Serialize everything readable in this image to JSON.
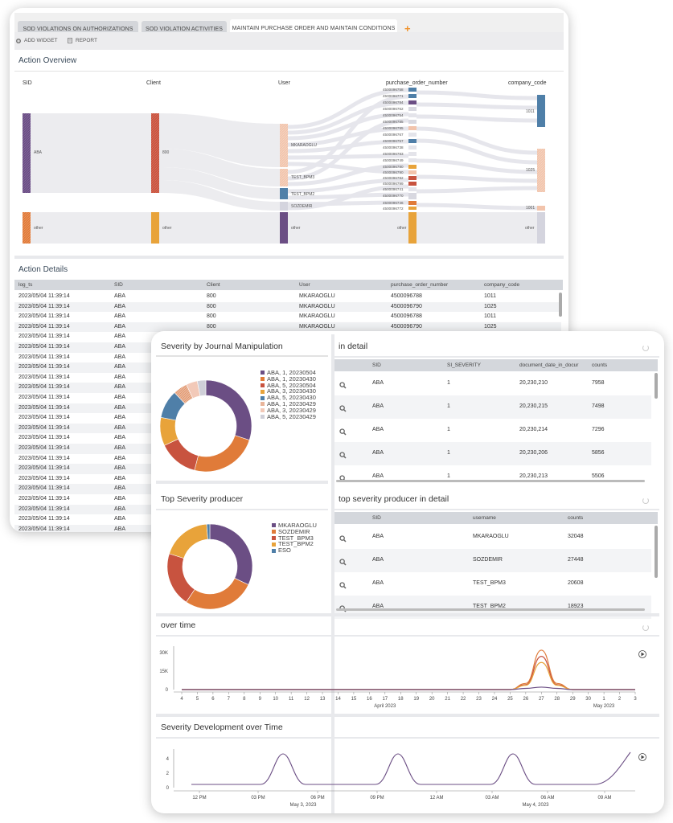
{
  "tabs": [
    {
      "label": "SOD VIOLATIONS ON AUTHORIZATIONS"
    },
    {
      "label": "SOD VIOLATION ACTIVITIES"
    },
    {
      "label": "MAINTAIN PURCHASE ORDER AND MAINTAIN CONDITIONS"
    }
  ],
  "tab_add": "+",
  "toolbar": {
    "add_widget": "ADD WIDGET",
    "report": "REPORT"
  },
  "action_overview": {
    "title": "Action Overview",
    "columns": [
      "SID",
      "Client",
      "User",
      "purchase_order_number",
      "company_code"
    ],
    "sid_nodes": [
      "ABA",
      "other"
    ],
    "client_nodes": [
      "800",
      "other"
    ],
    "user_nodes": [
      "MKARAOGLU",
      "TEST_BPM3",
      "TEST_BPM2",
      "SOZDEMIR",
      "other"
    ],
    "po_numbers": [
      "4500096758",
      "4500096771",
      "4500096784",
      "4500096762",
      "4500096754",
      "4500096785",
      "4500096795",
      "4500096767",
      "4500096757",
      "4500096738",
      "4500096783",
      "4500096749",
      "4500096780",
      "4500096790",
      "4500096782",
      "4500096799",
      "4500096741",
      "4500096770",
      "4500096746",
      "4500096772"
    ],
    "po_other": "other",
    "company_nodes": [
      "1011",
      "1025",
      "1001",
      "other"
    ]
  },
  "action_details": {
    "title": "Action Details",
    "headers": [
      "log_ts",
      "SID",
      "Client",
      "User",
      "purchase_order_number",
      "company_code"
    ],
    "rows": [
      [
        "2023/05/04 11:39:14",
        "ABA",
        "800",
        "MKARAOGLU",
        "4500096788",
        "1011"
      ],
      [
        "2023/05/04 11:39:14",
        "ABA",
        "800",
        "MKARAOGLU",
        "4500096790",
        "1025"
      ],
      [
        "2023/05/04 11:39:14",
        "ABA",
        "800",
        "MKARAOGLU",
        "4500096788",
        "1011"
      ],
      [
        "2023/05/04 11:39:14",
        "ABA",
        "800",
        "MKARAOGLU",
        "4500096790",
        "1025"
      ],
      [
        "2023/05/04 11:39:14",
        "ABA",
        "",
        "",
        "",
        ""
      ],
      [
        "2023/05/04 11:39:14",
        "ABA",
        "",
        "",
        "",
        ""
      ],
      [
        "2023/05/04 11:39:14",
        "ABA",
        "",
        "",
        "",
        ""
      ],
      [
        "2023/05/04 11:39:14",
        "ABA",
        "",
        "",
        "",
        ""
      ],
      [
        "2023/05/04 11:39:14",
        "ABA",
        "",
        "",
        "",
        ""
      ],
      [
        "2023/05/04 11:39:14",
        "ABA",
        "",
        "",
        "",
        ""
      ],
      [
        "2023/05/04 11:39:14",
        "ABA",
        "",
        "",
        "",
        ""
      ],
      [
        "2023/05/04 11:39:14",
        "ABA",
        "",
        "",
        "",
        ""
      ],
      [
        "2023/05/04 11:39:14",
        "ABA",
        "",
        "",
        "",
        ""
      ],
      [
        "2023/05/04 11:39:14",
        "ABA",
        "",
        "",
        "",
        ""
      ],
      [
        "2023/05/04 11:39:14",
        "ABA",
        "",
        "",
        "",
        ""
      ],
      [
        "2023/05/04 11:39:14",
        "ABA",
        "",
        "",
        "",
        ""
      ],
      [
        "2023/05/04 11:39:14",
        "ABA",
        "",
        "",
        "",
        ""
      ],
      [
        "2023/05/04 11:39:14",
        "ABA",
        "",
        "",
        "",
        ""
      ],
      [
        "2023/05/04 11:39:14",
        "ABA",
        "",
        "",
        "",
        ""
      ],
      [
        "2023/05/04 11:39:14",
        "ABA",
        "",
        "",
        "",
        ""
      ],
      [
        "2023/05/04 11:39:14",
        "ABA",
        "",
        "",
        "",
        ""
      ],
      [
        "2023/05/04 11:39:14",
        "ABA",
        "",
        "",
        "",
        ""
      ],
      [
        "2023/05/04 11:39:14",
        "ABA",
        "",
        "",
        "",
        ""
      ],
      [
        "2023/05/04 11:39:14",
        "ABA",
        "",
        "",
        "",
        ""
      ],
      [
        "2023/05/04 11:39:14",
        "ABA",
        "",
        "",
        "",
        ""
      ],
      [
        "2023/05/04 11:39:14",
        "ABA",
        "",
        "",
        "",
        ""
      ]
    ]
  },
  "severity_journal": {
    "title": "Severity by Journal Manipulation",
    "legend": [
      "ABA, 1, 20230504",
      "ABA, 1, 20230430",
      "ABA, 5, 20230504",
      "ABA, 3, 20230430",
      "ABA, 5, 20230430",
      "ABA, 1, 20230429",
      "ABA, 3, 20230429",
      "ABA, 5, 20230429"
    ],
    "colors": [
      "#6b4e84",
      "#e07b39",
      "#c8533f",
      "#e8a33a",
      "#4f7fa8",
      "#e8b49a",
      "#f2c9b8",
      "#cfcfd8"
    ],
    "values": [
      30,
      24,
      14,
      10,
      10,
      5,
      4,
      3
    ]
  },
  "in_detail": {
    "title": "in detail",
    "headers": [
      "SID",
      "SI_SEVERITY",
      "document_date_in_docur",
      "counts"
    ],
    "rows": [
      [
        "ABA",
        "1",
        "20,230,210",
        "7958"
      ],
      [
        "ABA",
        "1",
        "20,230,215",
        "7498"
      ],
      [
        "ABA",
        "1",
        "20,230,214",
        "7296"
      ],
      [
        "ABA",
        "1",
        "20,230,206",
        "5856"
      ],
      [
        "ABA",
        "1",
        "20,230,213",
        "5506"
      ]
    ]
  },
  "top_producer": {
    "title": "Top Severity producer",
    "legend": [
      "MKARAOGLU",
      "SOZDEMIR",
      "TEST_BPM3",
      "TEST_BPM2",
      "ESO"
    ],
    "colors": [
      "#6b4e84",
      "#e07b39",
      "#c8533f",
      "#e8a33a",
      "#4f7fa8"
    ],
    "values": [
      32048,
      27448,
      20608,
      18923,
      1200
    ]
  },
  "producer_detail": {
    "title": "top severity producer in detail",
    "headers": [
      "SID",
      "username",
      "counts"
    ],
    "rows": [
      [
        "ABA",
        "MKARAOGLU",
        "32048"
      ],
      [
        "ABA",
        "SOZDEMIR",
        "27448"
      ],
      [
        "ABA",
        "TEST_BPM3",
        "20608"
      ],
      [
        "ABA",
        "TEST_BPM2",
        "18923"
      ]
    ]
  },
  "chart_data": [
    {
      "type": "line",
      "title": "over time",
      "x": [
        "4",
        "5",
        "6",
        "7",
        "8",
        "9",
        "10",
        "11",
        "12",
        "13",
        "14",
        "15",
        "16",
        "17",
        "18",
        "19",
        "20",
        "21",
        "22",
        "23",
        "24",
        "25",
        "26",
        "27",
        "28",
        "29",
        "30",
        "1",
        "2",
        "3"
      ],
      "x_group_labels": [
        "April 2023",
        "May 2023"
      ],
      "yticks": [
        "30K",
        "15K",
        "0"
      ],
      "ylim": [
        0,
        30000
      ],
      "series": [
        {
          "color": "#e07b39",
          "values": [
            0,
            0,
            0,
            0,
            0,
            0,
            0,
            0,
            0,
            0,
            0,
            0,
            0,
            0,
            0,
            0,
            0,
            0,
            0,
            0,
            0,
            0,
            5000,
            32000,
            5000,
            0,
            0,
            0,
            0,
            0
          ]
        },
        {
          "color": "#c8533f",
          "values": [
            0,
            0,
            0,
            0,
            0,
            0,
            0,
            0,
            0,
            0,
            0,
            0,
            0,
            0,
            0,
            0,
            0,
            0,
            0,
            0,
            0,
            0,
            4000,
            27000,
            4000,
            0,
            0,
            0,
            0,
            0
          ]
        },
        {
          "color": "#e8a33a",
          "values": [
            0,
            0,
            0,
            0,
            0,
            0,
            0,
            0,
            0,
            0,
            0,
            0,
            0,
            0,
            0,
            0,
            0,
            0,
            0,
            0,
            0,
            0,
            3500,
            22000,
            3500,
            0,
            0,
            0,
            0,
            0
          ]
        },
        {
          "color": "#6b4e84",
          "values": [
            0,
            0,
            0,
            0,
            0,
            0,
            0,
            0,
            0,
            0,
            0,
            0,
            0,
            0,
            0,
            0,
            0,
            0,
            0,
            0,
            0,
            0,
            1000,
            2000,
            1000,
            0,
            0,
            0,
            0,
            0
          ]
        }
      ]
    },
    {
      "type": "line",
      "title": "Severity Development over Time",
      "x_ticks": [
        "12 PM",
        "03 PM",
        "06 PM",
        "09 PM",
        "12 AM",
        "03 AM",
        "06 AM",
        "09 AM"
      ],
      "x_group_labels": [
        "May 3, 2023",
        "May 4, 2023"
      ],
      "yticks": [
        "4",
        "2",
        "0"
      ],
      "ylim": [
        0,
        5
      ],
      "series": [
        {
          "color": "#6b4e84",
          "shape": "periodic peaks of 5 every 12h, rising at end"
        }
      ]
    }
  ]
}
